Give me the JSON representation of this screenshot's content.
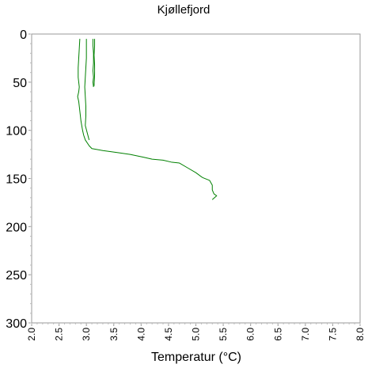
{
  "chart_data": {
    "type": "line",
    "title": "Kjøllefjord",
    "xlabel": "Temperatur (°C)",
    "ylabel": "",
    "xlim": [
      2.0,
      8.0
    ],
    "ylim": [
      300,
      0
    ],
    "y_inverted": true,
    "grid": false,
    "legend": "none",
    "xticks": [
      "2.0",
      "2.5",
      "3.0",
      "3.5",
      "4.0",
      "4.5",
      "5.0",
      "5.5",
      "6.0",
      "6.5",
      "7.0",
      "7.5",
      "8.0"
    ],
    "yticks": [
      "0",
      "50",
      "100",
      "150",
      "200",
      "250",
      "300"
    ],
    "series": [
      {
        "color": "#008000",
        "x": [
          2.88,
          2.87,
          2.86,
          2.85,
          2.85,
          2.87,
          2.86,
          2.84,
          2.86,
          2.88,
          2.9,
          2.93,
          2.95,
          2.98,
          3.05,
          3.1,
          3.3,
          3.55,
          3.8,
          4.05,
          4.2,
          4.4,
          4.55,
          4.7,
          4.85,
          5.0,
          5.12,
          5.25,
          5.3,
          5.3,
          5.33,
          5.38,
          5.3
        ],
        "y": [
          5,
          15,
          25,
          35,
          45,
          55,
          60,
          65,
          70,
          80,
          90,
          100,
          105,
          110,
          116,
          119,
          121,
          123,
          125,
          128,
          130,
          131,
          133,
          134,
          139,
          144,
          149,
          152,
          157,
          162,
          166,
          168,
          172
        ]
      },
      {
        "color": "#008000",
        "x": [
          3.0,
          3.0,
          3.0,
          2.99,
          2.98,
          2.97,
          2.98,
          2.99,
          2.99,
          2.98,
          3.05
        ],
        "y": [
          5,
          15,
          25,
          35,
          45,
          55,
          65,
          75,
          85,
          95,
          110
        ]
      },
      {
        "color": "#008000",
        "x": [
          3.12,
          3.12,
          3.13,
          3.13,
          3.12,
          3.13,
          3.12,
          3.13
        ],
        "y": [
          5,
          12,
          20,
          30,
          38,
          45,
          50,
          55
        ]
      },
      {
        "color": "#008000",
        "x": [
          3.15,
          3.15,
          3.14,
          3.15,
          3.15,
          3.14
        ],
        "y": [
          5,
          12,
          22,
          32,
          42,
          54
        ]
      }
    ]
  }
}
